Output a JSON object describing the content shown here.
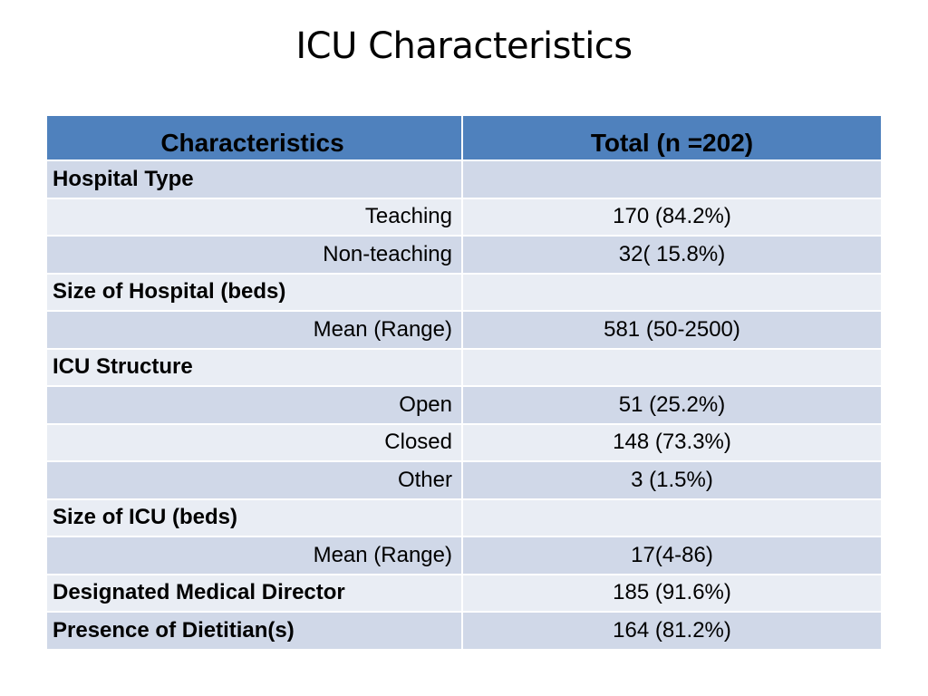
{
  "title": "ICU Characteristics",
  "table": {
    "headers": [
      "Characteristics",
      "Total (n =202)"
    ],
    "rows": [
      {
        "label": "Hospital Type",
        "value": "",
        "kind": "heading"
      },
      {
        "label": "Teaching",
        "value": "170 (84.2%)",
        "kind": "sub"
      },
      {
        "label": "Non-teaching",
        "value": "32( 15.8%)",
        "kind": "sub"
      },
      {
        "label": "Size of Hospital (beds)",
        "value": "",
        "kind": "heading"
      },
      {
        "label": "Mean (Range)",
        "value": "581 (50-2500)",
        "kind": "sub"
      },
      {
        "label": "ICU Structure",
        "value": "",
        "kind": "heading"
      },
      {
        "label": "Open",
        "value": "51 (25.2%)",
        "kind": "sub"
      },
      {
        "label": "Closed",
        "value": "148 (73.3%)",
        "kind": "sub"
      },
      {
        "label": "Other",
        "value": "3 (1.5%)",
        "kind": "sub"
      },
      {
        "label": "Size of ICU (beds)",
        "value": "",
        "kind": "heading"
      },
      {
        "label": "Mean (Range)",
        "value": "17(4-86)",
        "kind": "sub"
      },
      {
        "label": "Designated Medical Director",
        "value": "185 (91.6%)",
        "kind": "heading"
      },
      {
        "label": "Presence of Dietitian(s)",
        "value": "164 (81.2%)",
        "kind": "heading"
      }
    ]
  },
  "colors": {
    "header": "#4f81bd",
    "row_dark": "#d0d8e8",
    "row_light": "#e9edf4"
  }
}
